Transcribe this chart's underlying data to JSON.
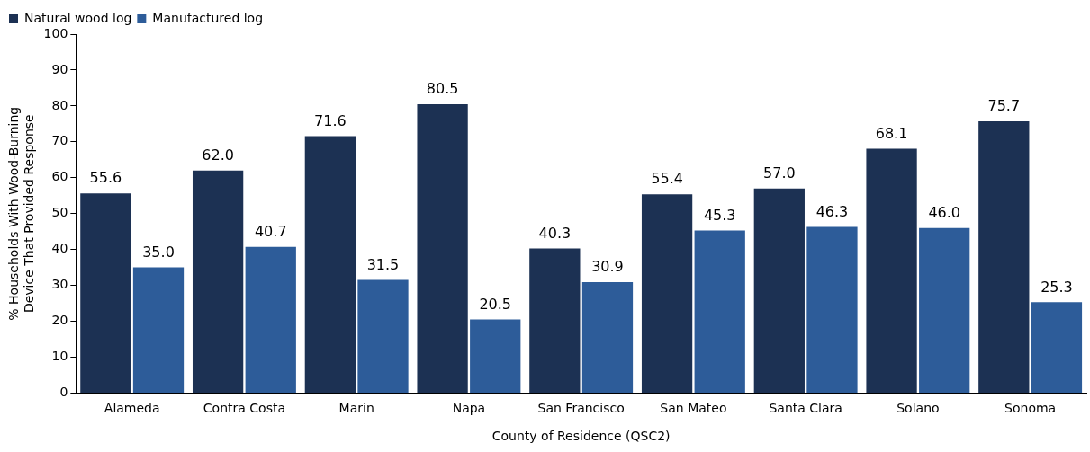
{
  "chart_data": {
    "type": "bar",
    "xlabel": "County of Residence (QSC2)",
    "ylabel": "% Households With Wood-Burning\nDevice That Provided Response",
    "categories": [
      "Alameda",
      "Contra Costa",
      "Marin",
      "Napa",
      "San Francisco",
      "San Mateo",
      "Santa Clara",
      "Solano",
      "Sonoma"
    ],
    "series": [
      {
        "name": "Natural wood log",
        "color": "#1c3153",
        "values": [
          55.6,
          62.0,
          71.6,
          80.5,
          40.3,
          55.4,
          57.0,
          68.1,
          75.7
        ],
        "value_labels": [
          "55.6",
          "62.0",
          "71.6",
          "80.5",
          "40.3",
          "55.4",
          "57.0",
          "68.1",
          "75.7"
        ]
      },
      {
        "name": "Manufactured log",
        "color": "#2d5c99",
        "values": [
          35.0,
          40.7,
          31.5,
          20.5,
          30.9,
          45.3,
          46.3,
          46.0,
          25.3
        ],
        "value_labels": [
          "35.0",
          "40.7",
          "31.5",
          "20.5",
          "30.9",
          "45.3",
          "46.3",
          "46.0",
          "25.3"
        ]
      }
    ],
    "ylim": [
      0,
      100
    ],
    "yticks": [
      0,
      10,
      20,
      30,
      40,
      50,
      60,
      70,
      80,
      90,
      100
    ],
    "grid": false,
    "legend": "top left"
  }
}
